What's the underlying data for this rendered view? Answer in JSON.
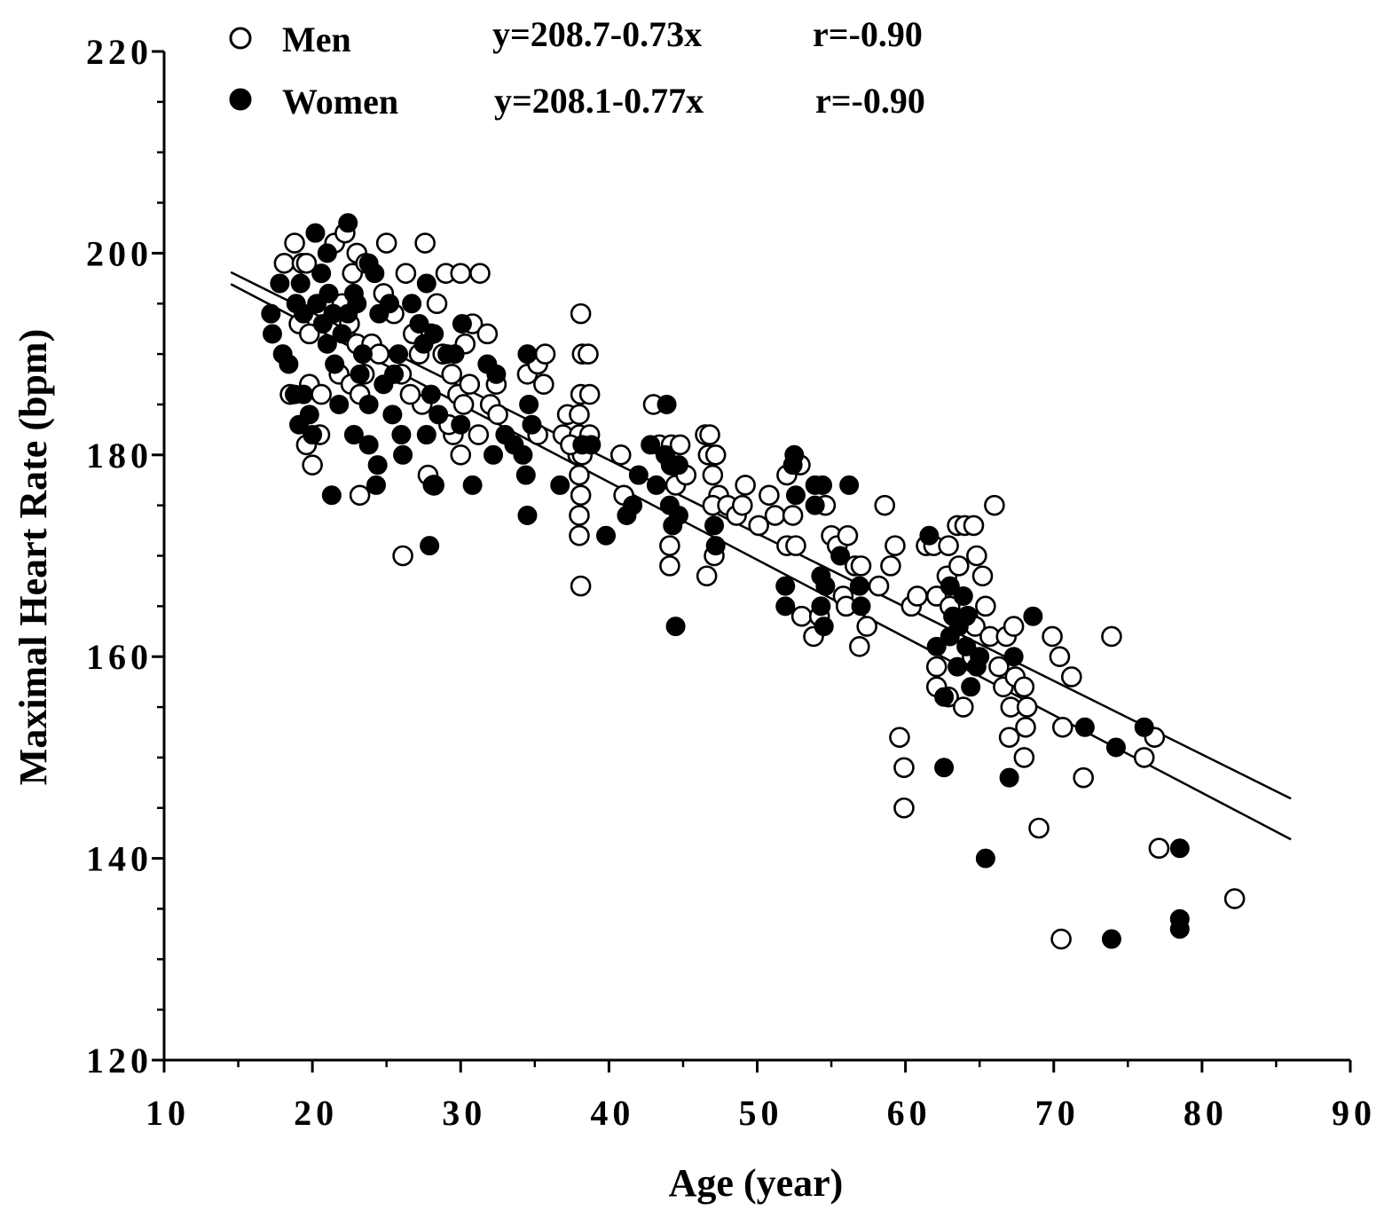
{
  "chart_data": {
    "type": "scatter",
    "title": "",
    "xlabel": "Age (year)",
    "ylabel": "Maximal Heart Rate (bpm)",
    "xlim": [
      10,
      90
    ],
    "ylim": [
      120,
      220
    ],
    "x_ticks": [
      10,
      20,
      30,
      40,
      50,
      60,
      70,
      80,
      90
    ],
    "y_ticks": [
      120,
      140,
      160,
      180,
      200,
      220
    ],
    "grid": false,
    "legend_position": "top-left",
    "series": [
      {
        "name": "Men",
        "marker": "open-circle",
        "equation": "y=208.7-0.73x",
        "r": "r=-0.90",
        "fit": {
          "intercept": 208.7,
          "slope": -0.73,
          "x_range": [
            14.5,
            86
          ]
        },
        "points": [
          [
            18.1,
            199
          ],
          [
            18.8,
            201
          ],
          [
            19.3,
            199
          ],
          [
            19.6,
            199
          ],
          [
            19.1,
            193
          ],
          [
            19.8,
            192
          ],
          [
            18.5,
            186
          ],
          [
            19.8,
            187
          ],
          [
            19.6,
            181
          ],
          [
            20.0,
            179
          ],
          [
            20.6,
            186
          ],
          [
            20.5,
            182
          ],
          [
            21.5,
            201
          ],
          [
            22.2,
            202
          ],
          [
            22.7,
            198
          ],
          [
            23.0,
            200
          ],
          [
            23.6,
            199
          ],
          [
            22.0,
            195
          ],
          [
            22.5,
            193
          ],
          [
            23.0,
            191
          ],
          [
            23.5,
            188
          ],
          [
            21.8,
            188
          ],
          [
            22.6,
            187
          ],
          [
            23.2,
            186
          ],
          [
            24.0,
            191
          ],
          [
            24.8,
            196
          ],
          [
            25.0,
            201
          ],
          [
            25.5,
            194
          ],
          [
            26.0,
            188
          ],
          [
            26.3,
            198
          ],
          [
            26.8,
            192
          ],
          [
            27.2,
            190
          ],
          [
            27.6,
            201
          ],
          [
            28.0,
            192
          ],
          [
            28.4,
            195
          ],
          [
            28.8,
            190
          ],
          [
            29.0,
            198
          ],
          [
            29.4,
            188
          ],
          [
            29.8,
            186
          ],
          [
            30.0,
            198
          ],
          [
            30.3,
            191
          ],
          [
            30.6,
            187
          ],
          [
            30.8,
            193
          ],
          [
            31.3,
            198
          ],
          [
            31.8,
            192
          ],
          [
            32.0,
            185
          ],
          [
            32.4,
            187
          ],
          [
            32.5,
            184
          ],
          [
            29.5,
            182
          ],
          [
            30.0,
            180
          ],
          [
            31.2,
            182
          ],
          [
            23.2,
            176
          ],
          [
            26.1,
            170
          ],
          [
            27.4,
            185
          ],
          [
            27.8,
            178
          ],
          [
            28.2,
            177
          ],
          [
            24.5,
            190
          ],
          [
            26.6,
            186
          ],
          [
            29.2,
            183
          ],
          [
            30.2,
            185
          ],
          [
            34.5,
            188
          ],
          [
            35.2,
            189
          ],
          [
            35.7,
            190
          ],
          [
            35.6,
            187
          ],
          [
            35.2,
            182
          ],
          [
            36.9,
            182
          ],
          [
            37.2,
            184
          ],
          [
            37.9,
            180
          ],
          [
            38.1,
            194
          ],
          [
            38.2,
            190
          ],
          [
            38.1,
            186
          ],
          [
            38.0,
            184
          ],
          [
            38.0,
            182
          ],
          [
            38.2,
            180
          ],
          [
            38.0,
            178
          ],
          [
            38.1,
            176
          ],
          [
            38.0,
            174
          ],
          [
            38.0,
            172
          ],
          [
            38.1,
            167
          ],
          [
            38.6,
            190
          ],
          [
            38.7,
            186
          ],
          [
            38.7,
            182
          ],
          [
            37.4,
            181
          ],
          [
            40.8,
            180
          ],
          [
            41.0,
            176
          ],
          [
            43.0,
            185
          ],
          [
            43.4,
            181
          ],
          [
            44.2,
            181
          ],
          [
            44.2,
            179
          ],
          [
            44.5,
            177
          ],
          [
            44.8,
            181
          ],
          [
            45.2,
            178
          ],
          [
            44.1,
            171
          ],
          [
            44.1,
            169
          ],
          [
            46.5,
            182
          ],
          [
            46.8,
            182
          ],
          [
            46.7,
            180
          ],
          [
            47.0,
            178
          ],
          [
            47.2,
            180
          ],
          [
            47.4,
            176
          ],
          [
            47.0,
            175
          ],
          [
            46.6,
            168
          ],
          [
            47.1,
            170
          ],
          [
            48.0,
            175
          ],
          [
            48.6,
            174
          ],
          [
            49.2,
            177
          ],
          [
            49.0,
            175
          ],
          [
            50.1,
            173
          ],
          [
            50.8,
            176
          ],
          [
            51.2,
            174
          ],
          [
            52.0,
            178
          ],
          [
            52.4,
            174
          ],
          [
            52.9,
            179
          ],
          [
            52.0,
            171
          ],
          [
            52.6,
            171
          ],
          [
            53.0,
            164
          ],
          [
            53.8,
            162
          ],
          [
            54.2,
            164
          ],
          [
            54.6,
            175
          ],
          [
            55.0,
            172
          ],
          [
            55.4,
            171
          ],
          [
            55.8,
            166
          ],
          [
            56.1,
            172
          ],
          [
            56.0,
            165
          ],
          [
            56.6,
            169
          ],
          [
            57.0,
            169
          ],
          [
            56.9,
            161
          ],
          [
            57.4,
            163
          ],
          [
            58.2,
            167
          ],
          [
            58.6,
            175
          ],
          [
            59.3,
            171
          ],
          [
            59.0,
            169
          ],
          [
            59.6,
            152
          ],
          [
            59.9,
            149
          ],
          [
            59.9,
            145
          ],
          [
            60.4,
            165
          ],
          [
            60.8,
            166
          ],
          [
            61.4,
            171
          ],
          [
            61.9,
            171
          ],
          [
            62.1,
            166
          ],
          [
            62.1,
            159
          ],
          [
            62.1,
            157
          ],
          [
            62.9,
            171
          ],
          [
            62.8,
            168
          ],
          [
            63.0,
            165
          ],
          [
            62.9,
            156
          ],
          [
            63.5,
            173
          ],
          [
            64.0,
            173
          ],
          [
            63.6,
            169
          ],
          [
            64.2,
            164
          ],
          [
            64.6,
            173
          ],
          [
            64.8,
            170
          ],
          [
            64.7,
            163
          ],
          [
            64.5,
            160
          ],
          [
            63.9,
            155
          ],
          [
            65.2,
            168
          ],
          [
            65.4,
            165
          ],
          [
            65.7,
            162
          ],
          [
            66.0,
            175
          ],
          [
            66.3,
            159
          ],
          [
            66.6,
            157
          ],
          [
            66.8,
            162
          ],
          [
            67.3,
            163
          ],
          [
            67.1,
            155
          ],
          [
            67.4,
            158
          ],
          [
            67.0,
            152
          ],
          [
            68.0,
            157
          ],
          [
            68.2,
            155
          ],
          [
            68.1,
            153
          ],
          [
            68.0,
            150
          ],
          [
            69.0,
            143
          ],
          [
            69.9,
            162
          ],
          [
            70.4,
            160
          ],
          [
            70.6,
            153
          ],
          [
            70.5,
            132
          ],
          [
            71.2,
            158
          ],
          [
            72.0,
            148
          ],
          [
            73.9,
            162
          ],
          [
            76.1,
            150
          ],
          [
            76.8,
            152
          ],
          [
            77.1,
            141
          ],
          [
            82.2,
            136
          ]
        ]
      },
      {
        "name": "Women",
        "marker": "filled-circle",
        "equation": "y=208.1-0.77x",
        "r": "r=-0.90",
        "fit": {
          "intercept": 208.1,
          "slope": -0.77,
          "x_range": [
            14.5,
            86
          ]
        },
        "points": [
          [
            17.2,
            194
          ],
          [
            17.3,
            192
          ],
          [
            17.8,
            197
          ],
          [
            18.0,
            190
          ],
          [
            18.4,
            189
          ],
          [
            18.9,
            195
          ],
          [
            19.2,
            197
          ],
          [
            19.4,
            194
          ],
          [
            18.8,
            186
          ],
          [
            19.1,
            183
          ],
          [
            19.4,
            186
          ],
          [
            19.8,
            184
          ],
          [
            20.0,
            182
          ],
          [
            20.2,
            202
          ],
          [
            20.6,
            198
          ],
          [
            21.0,
            200
          ],
          [
            20.3,
            195
          ],
          [
            20.7,
            193
          ],
          [
            21.1,
            196
          ],
          [
            21.4,
            194
          ],
          [
            21.0,
            191
          ],
          [
            21.5,
            189
          ],
          [
            22.0,
            192
          ],
          [
            21.8,
            185
          ],
          [
            21.3,
            176
          ],
          [
            22.4,
            203
          ],
          [
            22.8,
            196
          ],
          [
            22.4,
            194
          ],
          [
            23.0,
            195
          ],
          [
            23.4,
            190
          ],
          [
            23.2,
            188
          ],
          [
            23.8,
            199
          ],
          [
            24.2,
            198
          ],
          [
            24.5,
            194
          ],
          [
            24.8,
            187
          ],
          [
            23.8,
            185
          ],
          [
            23.8,
            181
          ],
          [
            24.4,
            179
          ],
          [
            24.3,
            177
          ],
          [
            22.8,
            182
          ],
          [
            25.2,
            195
          ],
          [
            25.8,
            190
          ],
          [
            25.5,
            188
          ],
          [
            25.4,
            184
          ],
          [
            26.1,
            180
          ],
          [
            26.0,
            182
          ],
          [
            26.7,
            195
          ],
          [
            27.2,
            193
          ],
          [
            27.5,
            191
          ],
          [
            27.7,
            197
          ],
          [
            27.7,
            182
          ],
          [
            28.0,
            186
          ],
          [
            28.2,
            192
          ],
          [
            28.1,
            177
          ],
          [
            28.5,
            184
          ],
          [
            29.1,
            190
          ],
          [
            29.6,
            190
          ],
          [
            30.1,
            193
          ],
          [
            30.0,
            183
          ],
          [
            30.8,
            177
          ],
          [
            27.9,
            171
          ],
          [
            31.8,
            189
          ],
          [
            32.4,
            188
          ],
          [
            32.2,
            180
          ],
          [
            33.0,
            182
          ],
          [
            33.6,
            181
          ],
          [
            34.2,
            180
          ],
          [
            34.5,
            190
          ],
          [
            34.6,
            185
          ],
          [
            34.8,
            183
          ],
          [
            34.4,
            178
          ],
          [
            34.5,
            174
          ],
          [
            36.7,
            177
          ],
          [
            38.2,
            181
          ],
          [
            38.8,
            181
          ],
          [
            39.8,
            172
          ],
          [
            41.2,
            174
          ],
          [
            41.6,
            175
          ],
          [
            42.0,
            178
          ],
          [
            42.8,
            181
          ],
          [
            43.2,
            177
          ],
          [
            43.9,
            185
          ],
          [
            43.8,
            180
          ],
          [
            44.3,
            179
          ],
          [
            44.7,
            179
          ],
          [
            44.1,
            175
          ],
          [
            44.3,
            173
          ],
          [
            44.7,
            174
          ],
          [
            44.5,
            163
          ],
          [
            47.1,
            173
          ],
          [
            47.2,
            171
          ],
          [
            51.9,
            167
          ],
          [
            51.9,
            165
          ],
          [
            52.4,
            179
          ],
          [
            52.5,
            180
          ],
          [
            52.6,
            176
          ],
          [
            53.9,
            177
          ],
          [
            53.9,
            175
          ],
          [
            54.4,
            177
          ],
          [
            54.3,
            168
          ],
          [
            54.6,
            167
          ],
          [
            54.3,
            165
          ],
          [
            54.5,
            163
          ],
          [
            55.6,
            170
          ],
          [
            56.2,
            177
          ],
          [
            56.9,
            167
          ],
          [
            57.0,
            165
          ],
          [
            61.6,
            172
          ],
          [
            62.1,
            161
          ],
          [
            62.6,
            149
          ],
          [
            62.6,
            156
          ],
          [
            63.0,
            167
          ],
          [
            63.2,
            164
          ],
          [
            63.6,
            163
          ],
          [
            63.0,
            162
          ],
          [
            63.9,
            166
          ],
          [
            64.1,
            164
          ],
          [
            63.5,
            159
          ],
          [
            64.1,
            161
          ],
          [
            64.4,
            157
          ],
          [
            64.8,
            159
          ],
          [
            65.0,
            160
          ],
          [
            65.4,
            140
          ],
          [
            67.3,
            160
          ],
          [
            67.0,
            148
          ],
          [
            68.6,
            164
          ],
          [
            72.1,
            153
          ],
          [
            73.9,
            132
          ],
          [
            74.2,
            151
          ],
          [
            76.1,
            153
          ],
          [
            78.5,
            141
          ],
          [
            78.5,
            134
          ],
          [
            78.5,
            133
          ]
        ]
      }
    ]
  }
}
